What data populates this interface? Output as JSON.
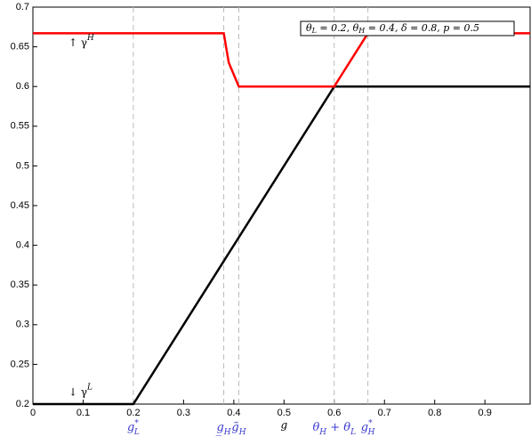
{
  "chart_data": {
    "type": "line",
    "xlim": [
      0,
      0.99
    ],
    "ylim": [
      0.2,
      0.7
    ],
    "xticks": [
      0,
      0.1,
      0.2,
      0.3,
      0.4,
      0.5,
      0.6,
      0.7,
      0.8,
      0.9
    ],
    "yticks": [
      0.2,
      0.25,
      0.3,
      0.35,
      0.4,
      0.45,
      0.5,
      0.55,
      0.6,
      0.65,
      0.7
    ],
    "x_label": "g",
    "series": [
      {
        "name": "γL",
        "color": "#000000",
        "x": [
          0,
          0.2,
          0.6,
          0.99
        ],
        "values": [
          0.2,
          0.2,
          0.6,
          0.6
        ]
      },
      {
        "name": "γH",
        "color": "#ff0000",
        "x": [
          0,
          0.38,
          0.39,
          0.41,
          0.6,
          0.667,
          0.99
        ],
        "values": [
          0.667,
          0.667,
          0.63,
          0.6,
          0.6,
          0.667,
          0.667
        ]
      }
    ],
    "markers": [
      {
        "value": 0.2,
        "base": "g",
        "sub": "L",
        "sup": "*"
      },
      {
        "value": 0.38,
        "base": "g̲",
        "sub": "H",
        "sup": ""
      },
      {
        "value": 0.41,
        "base": "g̃",
        "sub": "H",
        "sup": ""
      },
      {
        "value": 0.6,
        "base": "θ",
        "sub": "H",
        "sup": "",
        "rest": " + θ",
        "sub2": "L"
      },
      {
        "value": 0.667,
        "base": "g",
        "sub": "H",
        "sup": "*"
      }
    ],
    "annotations": [
      {
        "base": "↑ γ",
        "sup": "H",
        "y": 0.655
      },
      {
        "base": "↓ γ",
        "sup": "L",
        "y": 0.215
      }
    ],
    "box_text": [
      "θ",
      "L",
      " = 0.2, θ",
      "H",
      " = 0.4, δ = 0.8, p = 0.5"
    ]
  }
}
